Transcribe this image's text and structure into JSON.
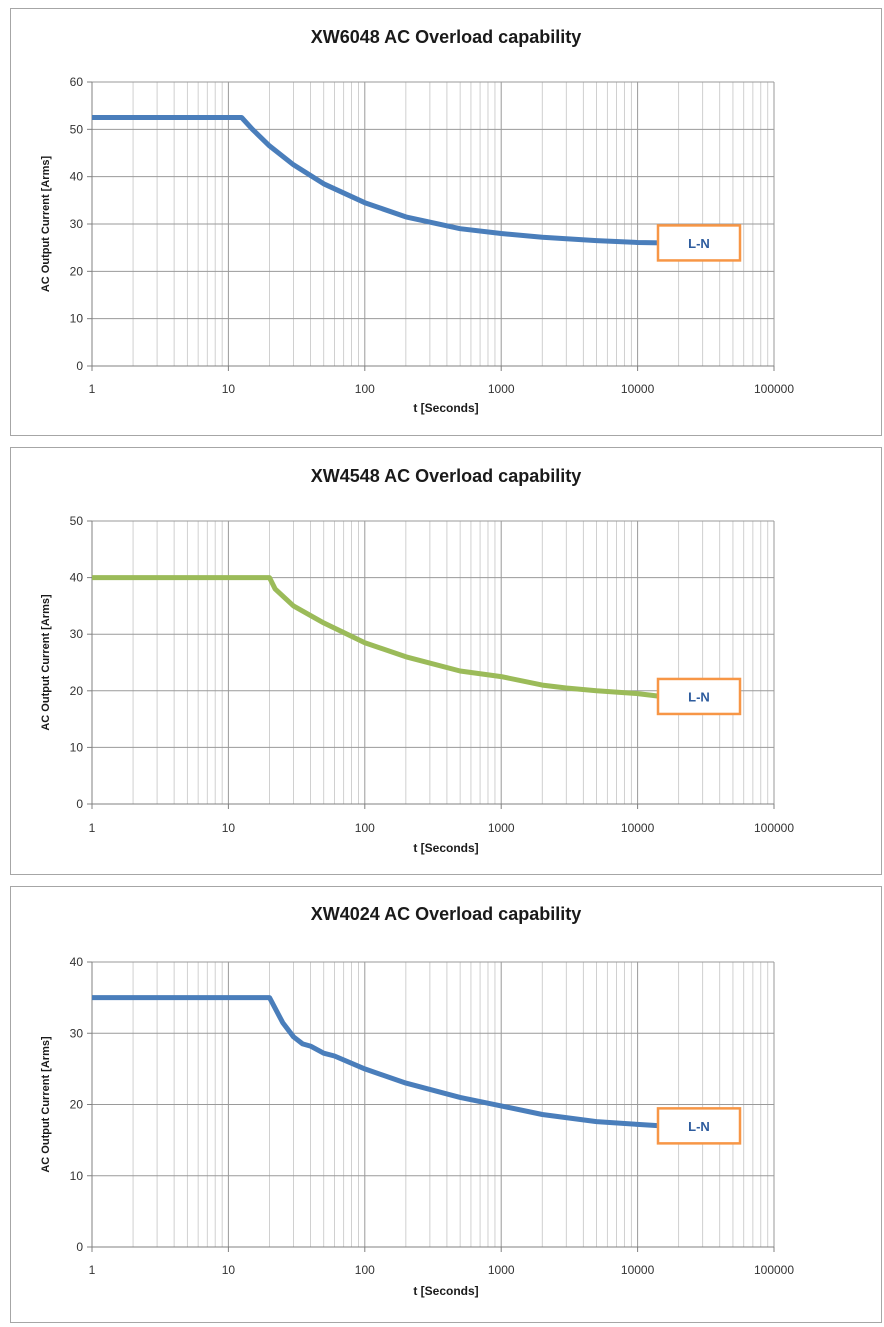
{
  "chart_data": [
    {
      "type": "line",
      "title": "XW6048 AC Overload capability",
      "xlabel": "t [Seconds]",
      "ylabel": "AC Output Current [Arms]",
      "xscale": "log",
      "xlim": [
        1,
        100000
      ],
      "ylim": [
        0,
        60
      ],
      "xticks": [
        1,
        10,
        100,
        1000,
        10000,
        100000
      ],
      "xtick_labels": [
        "1",
        "10",
        "100",
        "1000",
        "10000",
        "100000"
      ],
      "yticks": [
        0,
        10,
        20,
        30,
        40,
        50,
        60
      ],
      "ytick_labels": [
        "0",
        "10",
        "20",
        "30",
        "40",
        "50",
        "60"
      ],
      "grid": true,
      "legend_position": "right",
      "series": [
        {
          "name": "L-N",
          "color": "#4a7ebb",
          "x": [
            1,
            12.5,
            15,
            20,
            30,
            50,
            100,
            200,
            500,
            1000,
            2000,
            5000,
            10000,
            15000
          ],
          "y": [
            52.5,
            52.5,
            50,
            46.5,
            42.5,
            38.5,
            34.5,
            31.5,
            29,
            28,
            27.2,
            26.5,
            26.1,
            26
          ]
        }
      ]
    },
    {
      "type": "line",
      "title": "XW4548 AC Overload capability",
      "xlabel": "t [Seconds]",
      "ylabel": "AC Output Current [Arms]",
      "xscale": "log",
      "xlim": [
        1,
        100000
      ],
      "ylim": [
        0,
        50
      ],
      "xticks": [
        1,
        10,
        100,
        1000,
        10000,
        100000
      ],
      "xtick_labels": [
        "1",
        "10",
        "100",
        "1000",
        "10000",
        "100000"
      ],
      "yticks": [
        0,
        10,
        20,
        30,
        40,
        50
      ],
      "ytick_labels": [
        "0",
        "10",
        "20",
        "30",
        "40",
        "50"
      ],
      "grid": true,
      "legend_position": "right",
      "series": [
        {
          "name": "L-N",
          "color": "#9bbb59",
          "x": [
            1,
            20,
            22,
            30,
            50,
            100,
            200,
            500,
            1000,
            2000,
            3000,
            5000,
            10000,
            15000
          ],
          "y": [
            40,
            40,
            38,
            35,
            32,
            28.5,
            26,
            23.5,
            22.5,
            21,
            20.5,
            20,
            19.5,
            19
          ]
        }
      ]
    },
    {
      "type": "line",
      "title": "XW4024 AC Overload capability",
      "xlabel": "t [Seconds]",
      "ylabel": "AC Output Current [Arms]",
      "xscale": "log",
      "xlim": [
        1,
        100000
      ],
      "ylim": [
        0,
        40
      ],
      "xticks": [
        1,
        10,
        100,
        1000,
        10000,
        100000
      ],
      "xtick_labels": [
        "1",
        "10",
        "100",
        "1000",
        "10000",
        "100000"
      ],
      "yticks": [
        0,
        10,
        20,
        30,
        40
      ],
      "ytick_labels": [
        "0",
        "10",
        "20",
        "30",
        "40"
      ],
      "grid": true,
      "legend_position": "right",
      "series": [
        {
          "name": "L-N",
          "color": "#4a7ebb",
          "x": [
            1,
            20,
            25,
            30,
            35,
            40,
            50,
            60,
            100,
            200,
            500,
            1000,
            2000,
            5000,
            10000,
            15000
          ],
          "y": [
            35,
            35,
            31.5,
            29.5,
            28.5,
            28.2,
            27.2,
            26.8,
            25,
            23,
            21,
            19.8,
            18.6,
            17.6,
            17.2,
            17
          ]
        }
      ]
    }
  ]
}
